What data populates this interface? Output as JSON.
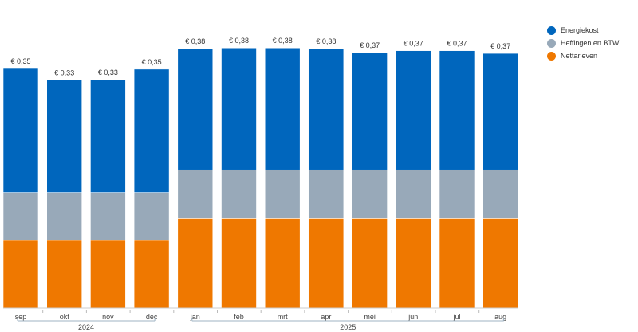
{
  "chart_data": {
    "type": "bar",
    "stacked": true,
    "categories": [
      "sep",
      "okt",
      "nov",
      "dec",
      "jan",
      "feb",
      "mrt",
      "apr",
      "mei",
      "jun",
      "jul",
      "aug"
    ],
    "groups": [
      {
        "label": "2024",
        "span": [
          0,
          3
        ]
      },
      {
        "label": "2025",
        "span": [
          4,
          11
        ]
      }
    ],
    "series": [
      {
        "name": "Nettarieven",
        "color": "#EF7800",
        "values": [
          0.099,
          0.099,
          0.099,
          0.099,
          0.131,
          0.131,
          0.131,
          0.131,
          0.131,
          0.131,
          0.131,
          0.131
        ]
      },
      {
        "name": "Heffingen en BTW",
        "color": "#98A9B9",
        "values": [
          0.07,
          0.07,
          0.07,
          0.07,
          0.071,
          0.071,
          0.071,
          0.071,
          0.071,
          0.071,
          0.071,
          0.071
        ]
      },
      {
        "name": "Energiekost",
        "color": "#0066BD",
        "values": [
          0.181,
          0.164,
          0.165,
          0.18,
          0.177,
          0.178,
          0.178,
          0.177,
          0.171,
          0.174,
          0.174,
          0.17
        ]
      }
    ],
    "total_labels": [
      "€ 0,35",
      "€ 0,33",
      "€ 0,33",
      "€ 0,35",
      "€ 0,38",
      "€ 0,38",
      "€ 0,38",
      "€ 0,38",
      "€ 0,37",
      "€ 0,37",
      "€ 0,37",
      "€ 0,37"
    ],
    "legend_order": [
      "Energiekost",
      "Heffingen en BTW",
      "Nettarieven"
    ],
    "legend_position": "right",
    "grid": false,
    "ylim": [
      0,
      0.45
    ]
  }
}
